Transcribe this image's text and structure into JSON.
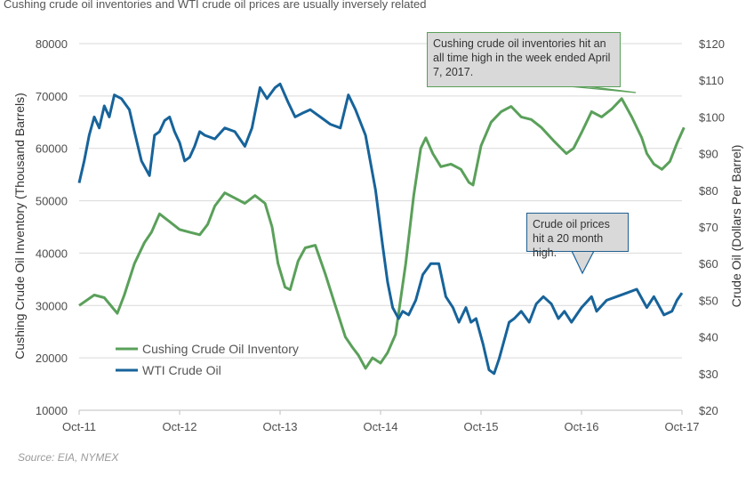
{
  "title": "Cushing crude oil inventories and WTI crude oil prices are usually inversely related",
  "source": "Source: EIA, NYMEX",
  "colors": {
    "inventory": "#5aa05a",
    "wti": "#17639a",
    "grid": "#d9d9d9",
    "callout_bg": "#d9d9d9"
  },
  "callouts": [
    {
      "text": "Cushing crude oil inventories hit an all time high in the week ended April 7, 2017."
    },
    {
      "text": "Crude oil prices hit a 20 month high."
    }
  ],
  "chart_data": {
    "type": "line",
    "x_tick_labels": [
      "Oct-11",
      "Oct-12",
      "Oct-13",
      "Oct-14",
      "Oct-15",
      "Oct-16",
      "Oct-17"
    ],
    "x_unit": "years since Oct-11",
    "ylabel_left": "Cushing Crude Oil Inventory (Thousand Barrels)",
    "ylabel_right": "Crude Oil (Dollars Per Barrel)",
    "ylim_left": [
      10000,
      80000
    ],
    "ylim_right": [
      20,
      120
    ],
    "y_ticks_left": [
      "10000",
      "20000",
      "30000",
      "40000",
      "50000",
      "60000",
      "70000",
      "80000"
    ],
    "y_ticks_right": [
      "$20",
      "$30",
      "$40",
      "$50",
      "$60",
      "$70",
      "$80",
      "$90",
      "$100",
      "$110",
      "$120"
    ],
    "grid": true,
    "legend_position": "bottom-left",
    "series": [
      {
        "name": "Cushing Crude Oil Inventory",
        "axis": "left",
        "x": [
          0,
          0.15,
          0.25,
          0.38,
          0.45,
          0.55,
          0.65,
          0.72,
          0.8,
          0.9,
          1.0,
          1.1,
          1.2,
          1.28,
          1.35,
          1.45,
          1.55,
          1.65,
          1.75,
          1.85,
          1.92,
          1.98,
          2.05,
          2.1,
          2.18,
          2.25,
          2.35,
          2.45,
          2.55,
          2.65,
          2.72,
          2.78,
          2.85,
          2.92,
          3.0,
          3.07,
          3.15,
          3.25,
          3.33,
          3.4,
          3.45,
          3.52,
          3.6,
          3.7,
          3.8,
          3.88,
          3.92,
          4.0,
          4.1,
          4.2,
          4.3,
          4.4,
          4.5,
          4.6,
          4.72,
          4.85,
          4.92,
          5.0,
          5.1,
          5.2,
          5.3,
          5.4,
          5.5,
          5.6,
          5.65,
          5.72,
          5.8,
          5.88,
          5.95,
          6.02
        ],
        "values": [
          30000,
          32000,
          31500,
          28500,
          32000,
          38000,
          42000,
          44000,
          47500,
          46000,
          44500,
          44000,
          43500,
          45500,
          49000,
          51500,
          50500,
          49500,
          51000,
          49500,
          45000,
          38000,
          33500,
          33000,
          38500,
          41000,
          41500,
          36000,
          30000,
          24000,
          22000,
          20500,
          18000,
          20000,
          19000,
          21000,
          24500,
          38000,
          51000,
          60000,
          62000,
          59000,
          56500,
          57000,
          56000,
          53500,
          53000,
          60500,
          65000,
          67000,
          68000,
          66000,
          65500,
          64000,
          61500,
          59000,
          60000,
          63000,
          67000,
          66000,
          67500,
          69500,
          66000,
          62000,
          59000,
          57000,
          56000,
          57500,
          61000,
          64000
        ]
      },
      {
        "name": "WTI Crude Oil",
        "axis": "right",
        "x": [
          0,
          0.05,
          0.1,
          0.15,
          0.2,
          0.25,
          0.3,
          0.35,
          0.42,
          0.5,
          0.55,
          0.62,
          0.7,
          0.75,
          0.8,
          0.85,
          0.9,
          0.95,
          1.0,
          1.05,
          1.1,
          1.15,
          1.2,
          1.25,
          1.35,
          1.45,
          1.55,
          1.65,
          1.72,
          1.8,
          1.87,
          1.95,
          2.0,
          2.08,
          2.15,
          2.22,
          2.3,
          2.4,
          2.5,
          2.6,
          2.68,
          2.75,
          2.85,
          2.95,
          3.02,
          3.07,
          3.12,
          3.18,
          3.22,
          3.28,
          3.35,
          3.42,
          3.5,
          3.58,
          3.65,
          3.72,
          3.78,
          3.85,
          3.9,
          3.95,
          4.02,
          4.08,
          4.13,
          4.18,
          4.24,
          4.28,
          4.33,
          4.4,
          4.48,
          4.55,
          4.62,
          4.7,
          4.77,
          4.83,
          4.9,
          5.0,
          5.1,
          5.15,
          5.25,
          5.35,
          5.45,
          5.55,
          5.65,
          5.72,
          5.82,
          5.9,
          5.95,
          6.0
        ],
        "values": [
          82,
          88,
          95,
          100,
          97,
          103,
          100,
          106,
          105,
          102,
          96,
          88,
          84,
          95,
          96,
          99,
          100,
          96,
          93,
          88,
          89,
          92,
          96,
          95,
          94,
          97,
          96,
          92,
          97,
          108,
          105,
          108,
          109,
          104,
          100,
          101,
          102,
          100,
          98,
          97,
          106,
          102,
          95,
          80,
          65,
          55,
          48,
          45,
          47,
          46,
          50,
          57,
          60,
          60,
          51,
          48,
          44,
          48,
          44,
          45,
          38,
          31,
          30,
          34,
          40,
          44,
          45,
          47,
          44,
          49,
          51,
          49,
          45,
          47,
          44,
          48,
          51,
          47,
          50,
          51,
          52,
          53,
          48,
          51,
          46,
          47,
          50,
          52
        ]
      }
    ]
  }
}
